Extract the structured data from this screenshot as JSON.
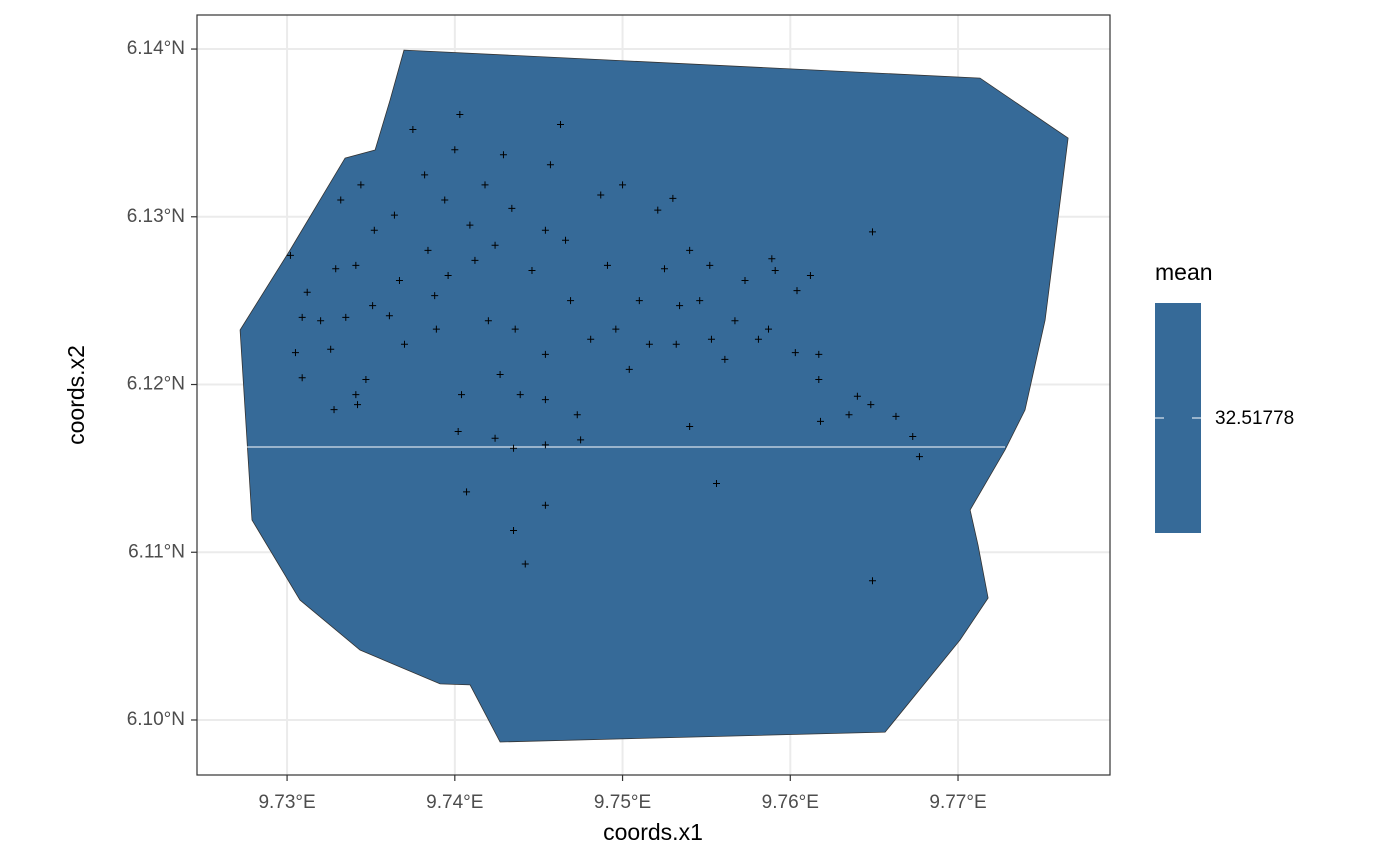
{
  "chart_data": {
    "type": "scatter",
    "xlabel": "coords.x1",
    "ylabel": "coords.x2",
    "xlim": [
      9.72463,
      9.77906
    ],
    "ylim": [
      6.09672,
      6.14203
    ],
    "xticks": [
      {
        "value": 9.73,
        "label": "9.73°E"
      },
      {
        "value": 9.74,
        "label": "9.74°E"
      },
      {
        "value": 9.75,
        "label": "9.75°E"
      },
      {
        "value": 9.76,
        "label": "9.76°E"
      },
      {
        "value": 9.77,
        "label": "9.77°E"
      }
    ],
    "yticks": [
      {
        "value": 6.1,
        "label": "6.10°N"
      },
      {
        "value": 6.11,
        "label": "6.11°N"
      },
      {
        "value": 6.12,
        "label": "6.12°N"
      },
      {
        "value": 6.13,
        "label": "6.13°N"
      },
      {
        "value": 6.14,
        "label": "6.14°N"
      }
    ],
    "grid": true,
    "legend": {
      "title": "mean",
      "value": 32.51778,
      "color": "#366a98"
    },
    "region": {
      "x": [
        9.73697,
        9.77131,
        9.77656,
        9.77519,
        9.77399,
        9.7728,
        9.77072,
        9.77119,
        9.77179,
        9.77012,
        9.76565,
        9.7427,
        9.74091,
        9.73912,
        9.73435,
        9.73077,
        9.72791,
        9.7272,
        9.73018,
        9.73346,
        9.73525,
        9.73614
      ],
      "y": [
        6.13994,
        6.13827,
        6.13469,
        6.12384,
        6.11848,
        6.1161,
        6.11252,
        6.11043,
        6.10727,
        6.10477,
        6.09928,
        6.09869,
        6.10209,
        6.10215,
        6.10417,
        6.10715,
        6.11192,
        6.12325,
        6.12802,
        6.1335,
        6.13398,
        6.13696
      ]
    },
    "points": {
      "color": "#000000",
      "x": [
        9.7302,
        9.7309,
        9.7305,
        9.7309,
        9.7312,
        9.732,
        9.7326,
        9.7332,
        9.7329,
        9.7335,
        9.7328,
        9.7341,
        9.7344,
        9.7347,
        9.7342,
        9.7351,
        9.7352,
        9.7361,
        9.7364,
        9.7367,
        9.7375,
        9.737,
        9.7382,
        9.7384,
        9.7389,
        9.7394,
        9.7396,
        9.74,
        9.7403,
        9.7409,
        9.7404,
        9.7402,
        9.7407,
        9.7412,
        9.742,
        9.7418,
        9.7424,
        9.7427,
        9.7424,
        9.7429,
        9.7434,
        9.7436,
        9.7435,
        9.7435,
        9.7442,
        9.7439,
        9.7446,
        9.7454,
        9.7454,
        9.7454,
        9.7454,
        9.7454,
        9.7463,
        9.7457,
        9.7466,
        9.7469,
        9.7473,
        9.7475,
        9.7481,
        9.7487,
        9.7491,
        9.7496,
        9.75,
        9.7504,
        9.751,
        9.7516,
        9.7521,
        9.7525,
        9.753,
        9.7532,
        9.7534,
        9.754,
        9.754,
        9.7546,
        9.7552,
        9.7553,
        9.7556,
        9.7561,
        9.7567,
        9.7573,
        9.7581,
        9.7587,
        9.7589,
        9.7591,
        9.7604,
        9.7603,
        9.7612,
        9.7617,
        9.7617,
        9.7618,
        9.7635,
        9.764,
        9.7649,
        9.7648,
        9.7649,
        9.7663,
        9.7673,
        9.7677,
        9.7341,
        9.7388
      ],
      "y": [
        6.1277,
        6.124,
        6.1219,
        6.1204,
        6.1255,
        6.1238,
        6.1221,
        6.131,
        6.1269,
        6.124,
        6.1185,
        6.1194,
        6.1319,
        6.1203,
        6.1188,
        6.1247,
        6.1292,
        6.1241,
        6.1301,
        6.1262,
        6.1352,
        6.1224,
        6.1325,
        6.128,
        6.1233,
        6.131,
        6.1265,
        6.134,
        6.1361,
        6.1295,
        6.1194,
        6.1172,
        6.1136,
        6.1274,
        6.1238,
        6.1319,
        6.1283,
        6.1206,
        6.1168,
        6.1337,
        6.1305,
        6.1233,
        6.1162,
        6.1113,
        6.1093,
        6.1194,
        6.1268,
        6.1292,
        6.1218,
        6.1191,
        6.1128,
        6.1164,
        6.1355,
        6.1331,
        6.1286,
        6.125,
        6.1182,
        6.1167,
        6.1227,
        6.1313,
        6.1271,
        6.1233,
        6.1319,
        6.1209,
        6.125,
        6.1224,
        6.1304,
        6.1269,
        6.1311,
        6.1224,
        6.1247,
        6.1175,
        6.128,
        6.125,
        6.1271,
        6.1227,
        6.1141,
        6.1215,
        6.1238,
        6.1262,
        6.1227,
        6.1233,
        6.1275,
        6.1268,
        6.1256,
        6.1219,
        6.1265,
        6.1218,
        6.1203,
        6.1178,
        6.1182,
        6.1193,
        6.1291,
        6.1188,
        6.1083,
        6.1181,
        6.1169,
        6.1157,
        6.1271,
        6.1253
      ]
    }
  }
}
